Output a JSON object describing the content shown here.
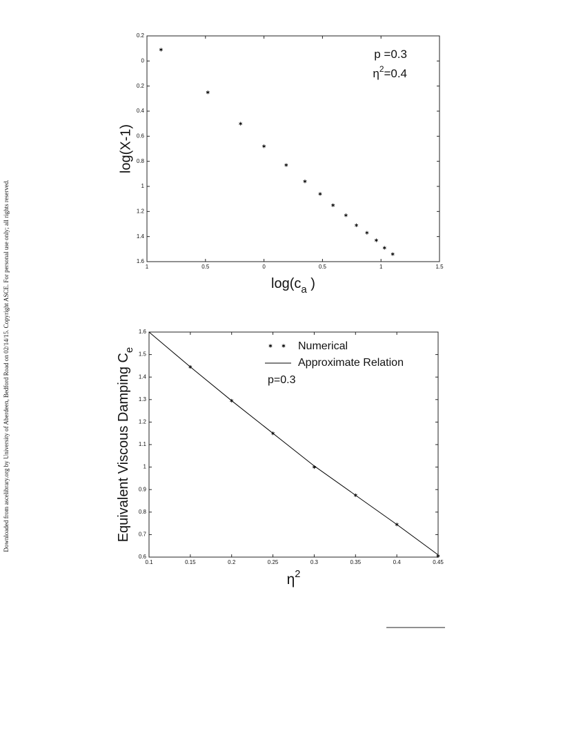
{
  "side_note": "Downloaded from ascelibrary.org by University of Aberdeen, Bedford Road on 02/14/15. Copyright ASCE. For personal use only; all rights reserved.",
  "chart_data": [
    {
      "type": "scatter",
      "y_label": "log(X-1)",
      "x_label": {
        "base": "log(c",
        "sub": "a",
        "rest": " )"
      },
      "annotations": [
        {
          "base": "p =0.3"
        },
        {
          "base": "η",
          "sup": "2",
          "rest": "=0.4"
        }
      ],
      "xlim": [
        -1,
        1.5
      ],
      "xticks": [
        {
          "value": -1,
          "label": "1"
        },
        {
          "value": -0.5,
          "label": "0.5"
        },
        0,
        0.5,
        1,
        1.5
      ],
      "ylim": [
        -1.6,
        0.2
      ],
      "yticks": [
        0.2,
        0,
        {
          "value": -0.2,
          "label": "0.2"
        },
        {
          "value": -0.4,
          "label": "0.4"
        },
        {
          "value": -0.6,
          "label": "0.6"
        },
        {
          "value": -0.8,
          "label": "0.8"
        },
        {
          "value": -1,
          "label": "1"
        },
        {
          "value": -1.2,
          "label": "1.2"
        },
        {
          "value": -1.4,
          "label": "1.4"
        },
        {
          "value": -1.6,
          "label": "1.6"
        }
      ],
      "series": [
        {
          "color": "#000000",
          "mode": "markers",
          "x": [
            -0.88,
            -0.48,
            -0.2,
            0.0,
            0.19,
            0.35,
            0.48,
            0.59,
            0.7,
            0.79,
            0.88,
            0.96,
            1.03,
            1.1
          ],
          "values": [
            0.09,
            -0.25,
            -0.5,
            -0.68,
            -0.83,
            -0.96,
            -1.06,
            -1.15,
            -1.23,
            -1.31,
            -1.37,
            -1.43,
            -1.49,
            -1.54
          ]
        }
      ]
    },
    {
      "type": "line",
      "y_label": {
        "base": "Equivalent Viscous Damping C",
        "sub": "e"
      },
      "x_label": {
        "base": "η",
        "sup": "2"
      },
      "annotations": [
        {
          "base": "p=0.3"
        }
      ],
      "xlim": [
        0.1,
        0.45
      ],
      "xticks": [
        0.1,
        0.15,
        0.2,
        0.25,
        0.3,
        0.35,
        0.4,
        0.45
      ],
      "ylim": [
        0.6,
        1.6
      ],
      "yticks": [
        0.6,
        0.7,
        0.8,
        0.9,
        1,
        1.1,
        1.2,
        1.3,
        1.4,
        1.5,
        1.6
      ],
      "series": [
        {
          "name": "Numerical",
          "color": "#000000",
          "mode": "markers",
          "x": [
            0.15,
            0.2,
            0.25,
            0.3,
            0.35,
            0.4,
            0.45
          ],
          "values": [
            1.445,
            1.295,
            1.15,
            1.0,
            0.875,
            0.745,
            0.605
          ]
        },
        {
          "name": "Approximate Relation",
          "color": "#000000",
          "mode": "line",
          "x": [
            0.1,
            0.15,
            0.2,
            0.25,
            0.3,
            0.35,
            0.4,
            0.45
          ],
          "values": [
            1.6,
            1.445,
            1.295,
            1.15,
            1.005,
            0.875,
            0.745,
            0.61
          ]
        }
      ]
    }
  ]
}
